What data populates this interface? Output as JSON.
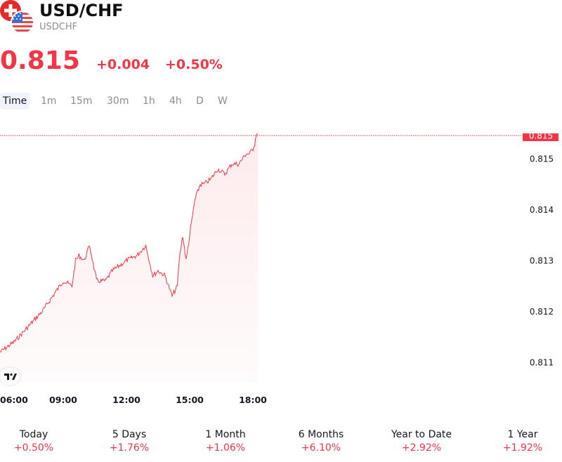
{
  "header": {
    "title": "USD/CHF",
    "ticker": "USDCHF",
    "price": "0.815",
    "change": "+0.004",
    "change_pct": "+0.50%"
  },
  "timeframes": [
    "Time",
    "1m",
    "15m",
    "30m",
    "1h",
    "4h",
    "D",
    "W"
  ],
  "active_timeframe": "Time",
  "colors": {
    "accent": "#f23645",
    "line": "#f23645",
    "text": "#131722",
    "muted": "#8a8e97"
  },
  "icons": [
    "swiss-flag-icon",
    "us-flag-icon",
    "tradingview-logo-icon"
  ],
  "chart_data": {
    "type": "area",
    "x_ticks": [
      "06:00",
      "09:00",
      "12:00",
      "15:00",
      "18:00"
    ],
    "y_ticks": [
      "0.815",
      "0.814",
      "0.813",
      "0.812",
      "0.811"
    ],
    "last_price_label": "0.815",
    "xlim": [
      "06:00",
      "19:00"
    ],
    "ylim": [
      0.8106,
      0.8155
    ],
    "series": [
      {
        "x": [
          "06:00",
          "06:40",
          "07:20",
          "08:00",
          "08:10",
          "08:40",
          "09:00",
          "09:25",
          "09:35",
          "09:45",
          "10:00",
          "10:15",
          "10:35",
          "11:00",
          "11:20",
          "11:40",
          "12:00",
          "12:30",
          "12:55",
          "13:15",
          "13:30",
          "13:50",
          "14:10",
          "14:25",
          "14:30",
          "14:40",
          "14:50",
          "15:00",
          "15:15",
          "15:30",
          "15:40",
          "16:00",
          "16:20",
          "16:40",
          "17:00",
          "17:20",
          "17:40",
          "17:50",
          "18:00",
          "18:05",
          "18:10",
          "18:15"
        ],
        "y": [
          0.8112,
          0.8114,
          0.8117,
          0.812,
          0.8121,
          0.8124,
          0.8126,
          0.8125,
          0.813,
          0.8131,
          0.813,
          0.8133,
          0.8126,
          0.8126,
          0.8128,
          0.8129,
          0.813,
          0.8131,
          0.8133,
          0.8127,
          0.8128,
          0.8127,
          0.8123,
          0.8125,
          0.813,
          0.8135,
          0.813,
          0.8135,
          0.8142,
          0.8145,
          0.8145,
          0.8146,
          0.8148,
          0.8147,
          0.8149,
          0.8149,
          0.8151,
          0.8151,
          0.8152,
          0.8153,
          0.8155,
          0.8155
        ]
      }
    ]
  },
  "performance": [
    {
      "label": "Today",
      "value": "+0.50%"
    },
    {
      "label": "5 Days",
      "value": "+1.76%"
    },
    {
      "label": "1 Month",
      "value": "+1.06%"
    },
    {
      "label": "6 Months",
      "value": "+6.10%"
    },
    {
      "label": "Year to Date",
      "value": "+2.92%"
    },
    {
      "label": "1 Year",
      "value": "+1.92%"
    }
  ]
}
